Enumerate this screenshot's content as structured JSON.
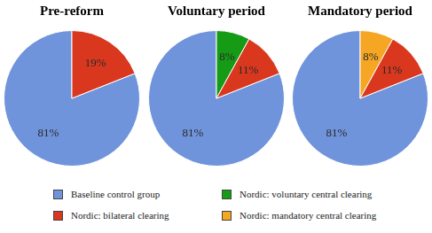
{
  "chart_data": [
    {
      "type": "pie",
      "title": "Pre-reform",
      "categories": [
        "Baseline control group",
        "Nordic: bilateral clearing"
      ],
      "values": [
        81,
        19
      ],
      "value_labels": [
        "81%",
        "19%"
      ],
      "colors": [
        "#7094db",
        "#d9381e"
      ],
      "data_labels": true,
      "legend": "bottom"
    },
    {
      "type": "pie",
      "title": "Voluntary period",
      "categories": [
        "Baseline control group",
        "Nordic: voluntary central clearing",
        "Nordic: bilateral clearing"
      ],
      "values": [
        81,
        8,
        11
      ],
      "value_labels": [
        "81%",
        "8%",
        "11%"
      ],
      "colors": [
        "#7094db",
        "#169b16",
        "#d9381e"
      ],
      "data_labels": true,
      "legend": "bottom"
    },
    {
      "type": "pie",
      "title": "Mandatory period",
      "categories": [
        "Baseline control group",
        "Nordic: mandatory central clearing",
        "Nordic: bilateral clearing"
      ],
      "values": [
        81,
        8,
        11
      ],
      "value_labels": [
        "81%",
        "8%",
        "11%"
      ],
      "colors": [
        "#7094db",
        "#f5a623",
        "#d9381e"
      ],
      "data_labels": true,
      "legend": "bottom"
    }
  ]
}
